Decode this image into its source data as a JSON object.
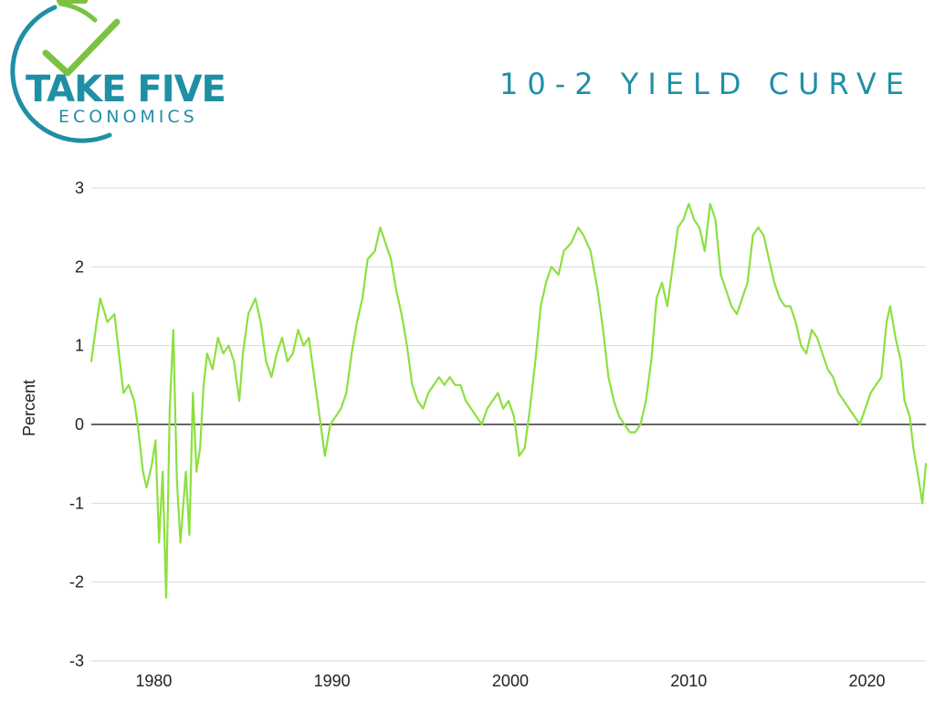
{
  "logo": {
    "name": "TAKE FIVE",
    "subtitle": "ECONOMICS",
    "colors": {
      "teal": "#1f8fa6",
      "green": "#7cc242"
    }
  },
  "chart_data": {
    "type": "line",
    "title": "10-2 YIELD CURVE",
    "xlabel": "",
    "ylabel": "Percent",
    "xlim": [
      1976.5,
      2023.3
    ],
    "ylim": [
      -3,
      3
    ],
    "xticks": [
      1980,
      1990,
      2000,
      2010,
      2020
    ],
    "yticks": [
      -3,
      -2,
      -1,
      0,
      1,
      2,
      3
    ],
    "grid": "horizontal",
    "zero_line": true,
    "series": [
      {
        "name": "",
        "color": "#8ce03f",
        "points": [
          [
            1976.5,
            0.8
          ],
          [
            1976.8,
            1.3
          ],
          [
            1977.0,
            1.6
          ],
          [
            1977.4,
            1.3
          ],
          [
            1977.8,
            1.4
          ],
          [
            1978.1,
            0.8
          ],
          [
            1978.3,
            0.4
          ],
          [
            1978.6,
            0.5
          ],
          [
            1978.9,
            0.3
          ],
          [
            1979.1,
            0.0
          ],
          [
            1979.4,
            -0.6
          ],
          [
            1979.6,
            -0.8
          ],
          [
            1979.9,
            -0.5
          ],
          [
            1980.1,
            -0.2
          ],
          [
            1980.3,
            -1.5
          ],
          [
            1980.5,
            -0.6
          ],
          [
            1980.7,
            -2.2
          ],
          [
            1980.9,
            0.2
          ],
          [
            1981.1,
            1.2
          ],
          [
            1981.3,
            -0.7
          ],
          [
            1981.5,
            -1.5
          ],
          [
            1981.8,
            -0.6
          ],
          [
            1982.0,
            -1.4
          ],
          [
            1982.2,
            0.4
          ],
          [
            1982.4,
            -0.6
          ],
          [
            1982.6,
            -0.3
          ],
          [
            1982.8,
            0.5
          ],
          [
            1983.0,
            0.9
          ],
          [
            1983.3,
            0.7
          ],
          [
            1983.6,
            1.1
          ],
          [
            1983.9,
            0.9
          ],
          [
            1984.2,
            1.0
          ],
          [
            1984.5,
            0.8
          ],
          [
            1984.8,
            0.3
          ],
          [
            1985.0,
            0.9
          ],
          [
            1985.3,
            1.4
          ],
          [
            1985.7,
            1.6
          ],
          [
            1986.0,
            1.3
          ],
          [
            1986.3,
            0.8
          ],
          [
            1986.6,
            0.6
          ],
          [
            1986.9,
            0.9
          ],
          [
            1987.2,
            1.1
          ],
          [
            1987.5,
            0.8
          ],
          [
            1987.8,
            0.9
          ],
          [
            1988.1,
            1.2
          ],
          [
            1988.4,
            1.0
          ],
          [
            1988.7,
            1.1
          ],
          [
            1989.0,
            0.6
          ],
          [
            1989.3,
            0.1
          ],
          [
            1989.6,
            -0.4
          ],
          [
            1989.9,
            0.0
          ],
          [
            1990.2,
            0.1
          ],
          [
            1990.5,
            0.2
          ],
          [
            1990.8,
            0.4
          ],
          [
            1991.1,
            0.9
          ],
          [
            1991.4,
            1.3
          ],
          [
            1991.7,
            1.6
          ],
          [
            1992.0,
            2.1
          ],
          [
            1992.4,
            2.2
          ],
          [
            1992.7,
            2.5
          ],
          [
            1993.0,
            2.3
          ],
          [
            1993.3,
            2.1
          ],
          [
            1993.6,
            1.7
          ],
          [
            1993.9,
            1.4
          ],
          [
            1994.2,
            1.0
          ],
          [
            1994.5,
            0.5
          ],
          [
            1994.8,
            0.3
          ],
          [
            1995.1,
            0.2
          ],
          [
            1995.4,
            0.4
          ],
          [
            1995.7,
            0.5
          ],
          [
            1996.0,
            0.6
          ],
          [
            1996.3,
            0.5
          ],
          [
            1996.6,
            0.6
          ],
          [
            1996.9,
            0.5
          ],
          [
            1997.2,
            0.5
          ],
          [
            1997.5,
            0.3
          ],
          [
            1997.8,
            0.2
          ],
          [
            1998.1,
            0.1
          ],
          [
            1998.4,
            0.0
          ],
          [
            1998.7,
            0.2
          ],
          [
            1999.0,
            0.3
          ],
          [
            1999.3,
            0.4
          ],
          [
            1999.6,
            0.2
          ],
          [
            1999.9,
            0.3
          ],
          [
            2000.2,
            0.1
          ],
          [
            2000.5,
            -0.4
          ],
          [
            2000.8,
            -0.3
          ],
          [
            2001.1,
            0.2
          ],
          [
            2001.4,
            0.8
          ],
          [
            2001.7,
            1.5
          ],
          [
            2002.0,
            1.8
          ],
          [
            2002.3,
            2.0
          ],
          [
            2002.7,
            1.9
          ],
          [
            2003.0,
            2.2
          ],
          [
            2003.4,
            2.3
          ],
          [
            2003.8,
            2.5
          ],
          [
            2004.1,
            2.4
          ],
          [
            2004.5,
            2.2
          ],
          [
            2004.9,
            1.7
          ],
          [
            2005.2,
            1.2
          ],
          [
            2005.5,
            0.6
          ],
          [
            2005.8,
            0.3
          ],
          [
            2006.1,
            0.1
          ],
          [
            2006.4,
            0.0
          ],
          [
            2006.7,
            -0.1
          ],
          [
            2007.0,
            -0.1
          ],
          [
            2007.3,
            0.0
          ],
          [
            2007.6,
            0.3
          ],
          [
            2007.9,
            0.8
          ],
          [
            2008.2,
            1.6
          ],
          [
            2008.5,
            1.8
          ],
          [
            2008.8,
            1.5
          ],
          [
            2009.1,
            2.0
          ],
          [
            2009.4,
            2.5
          ],
          [
            2009.7,
            2.6
          ],
          [
            2010.0,
            2.8
          ],
          [
            2010.3,
            2.6
          ],
          [
            2010.6,
            2.5
          ],
          [
            2010.9,
            2.2
          ],
          [
            2011.2,
            2.8
          ],
          [
            2011.5,
            2.6
          ],
          [
            2011.8,
            1.9
          ],
          [
            2012.1,
            1.7
          ],
          [
            2012.4,
            1.5
          ],
          [
            2012.7,
            1.4
          ],
          [
            2013.0,
            1.6
          ],
          [
            2013.3,
            1.8
          ],
          [
            2013.6,
            2.4
          ],
          [
            2013.9,
            2.5
          ],
          [
            2014.2,
            2.4
          ],
          [
            2014.5,
            2.1
          ],
          [
            2014.8,
            1.8
          ],
          [
            2015.1,
            1.6
          ],
          [
            2015.4,
            1.5
          ],
          [
            2015.7,
            1.5
          ],
          [
            2016.0,
            1.3
          ],
          [
            2016.3,
            1.0
          ],
          [
            2016.6,
            0.9
          ],
          [
            2016.9,
            1.2
          ],
          [
            2017.2,
            1.1
          ],
          [
            2017.5,
            0.9
          ],
          [
            2017.8,
            0.7
          ],
          [
            2018.1,
            0.6
          ],
          [
            2018.4,
            0.4
          ],
          [
            2018.7,
            0.3
          ],
          [
            2019.0,
            0.2
          ],
          [
            2019.3,
            0.1
          ],
          [
            2019.6,
            0.0
          ],
          [
            2019.9,
            0.2
          ],
          [
            2020.2,
            0.4
          ],
          [
            2020.5,
            0.5
          ],
          [
            2020.8,
            0.6
          ],
          [
            2021.1,
            1.3
          ],
          [
            2021.3,
            1.5
          ],
          [
            2021.6,
            1.1
          ],
          [
            2021.9,
            0.8
          ],
          [
            2022.1,
            0.3
          ],
          [
            2022.4,
            0.1
          ],
          [
            2022.6,
            -0.3
          ],
          [
            2022.9,
            -0.7
          ],
          [
            2023.1,
            -1.0
          ],
          [
            2023.3,
            -0.5
          ]
        ]
      }
    ]
  }
}
